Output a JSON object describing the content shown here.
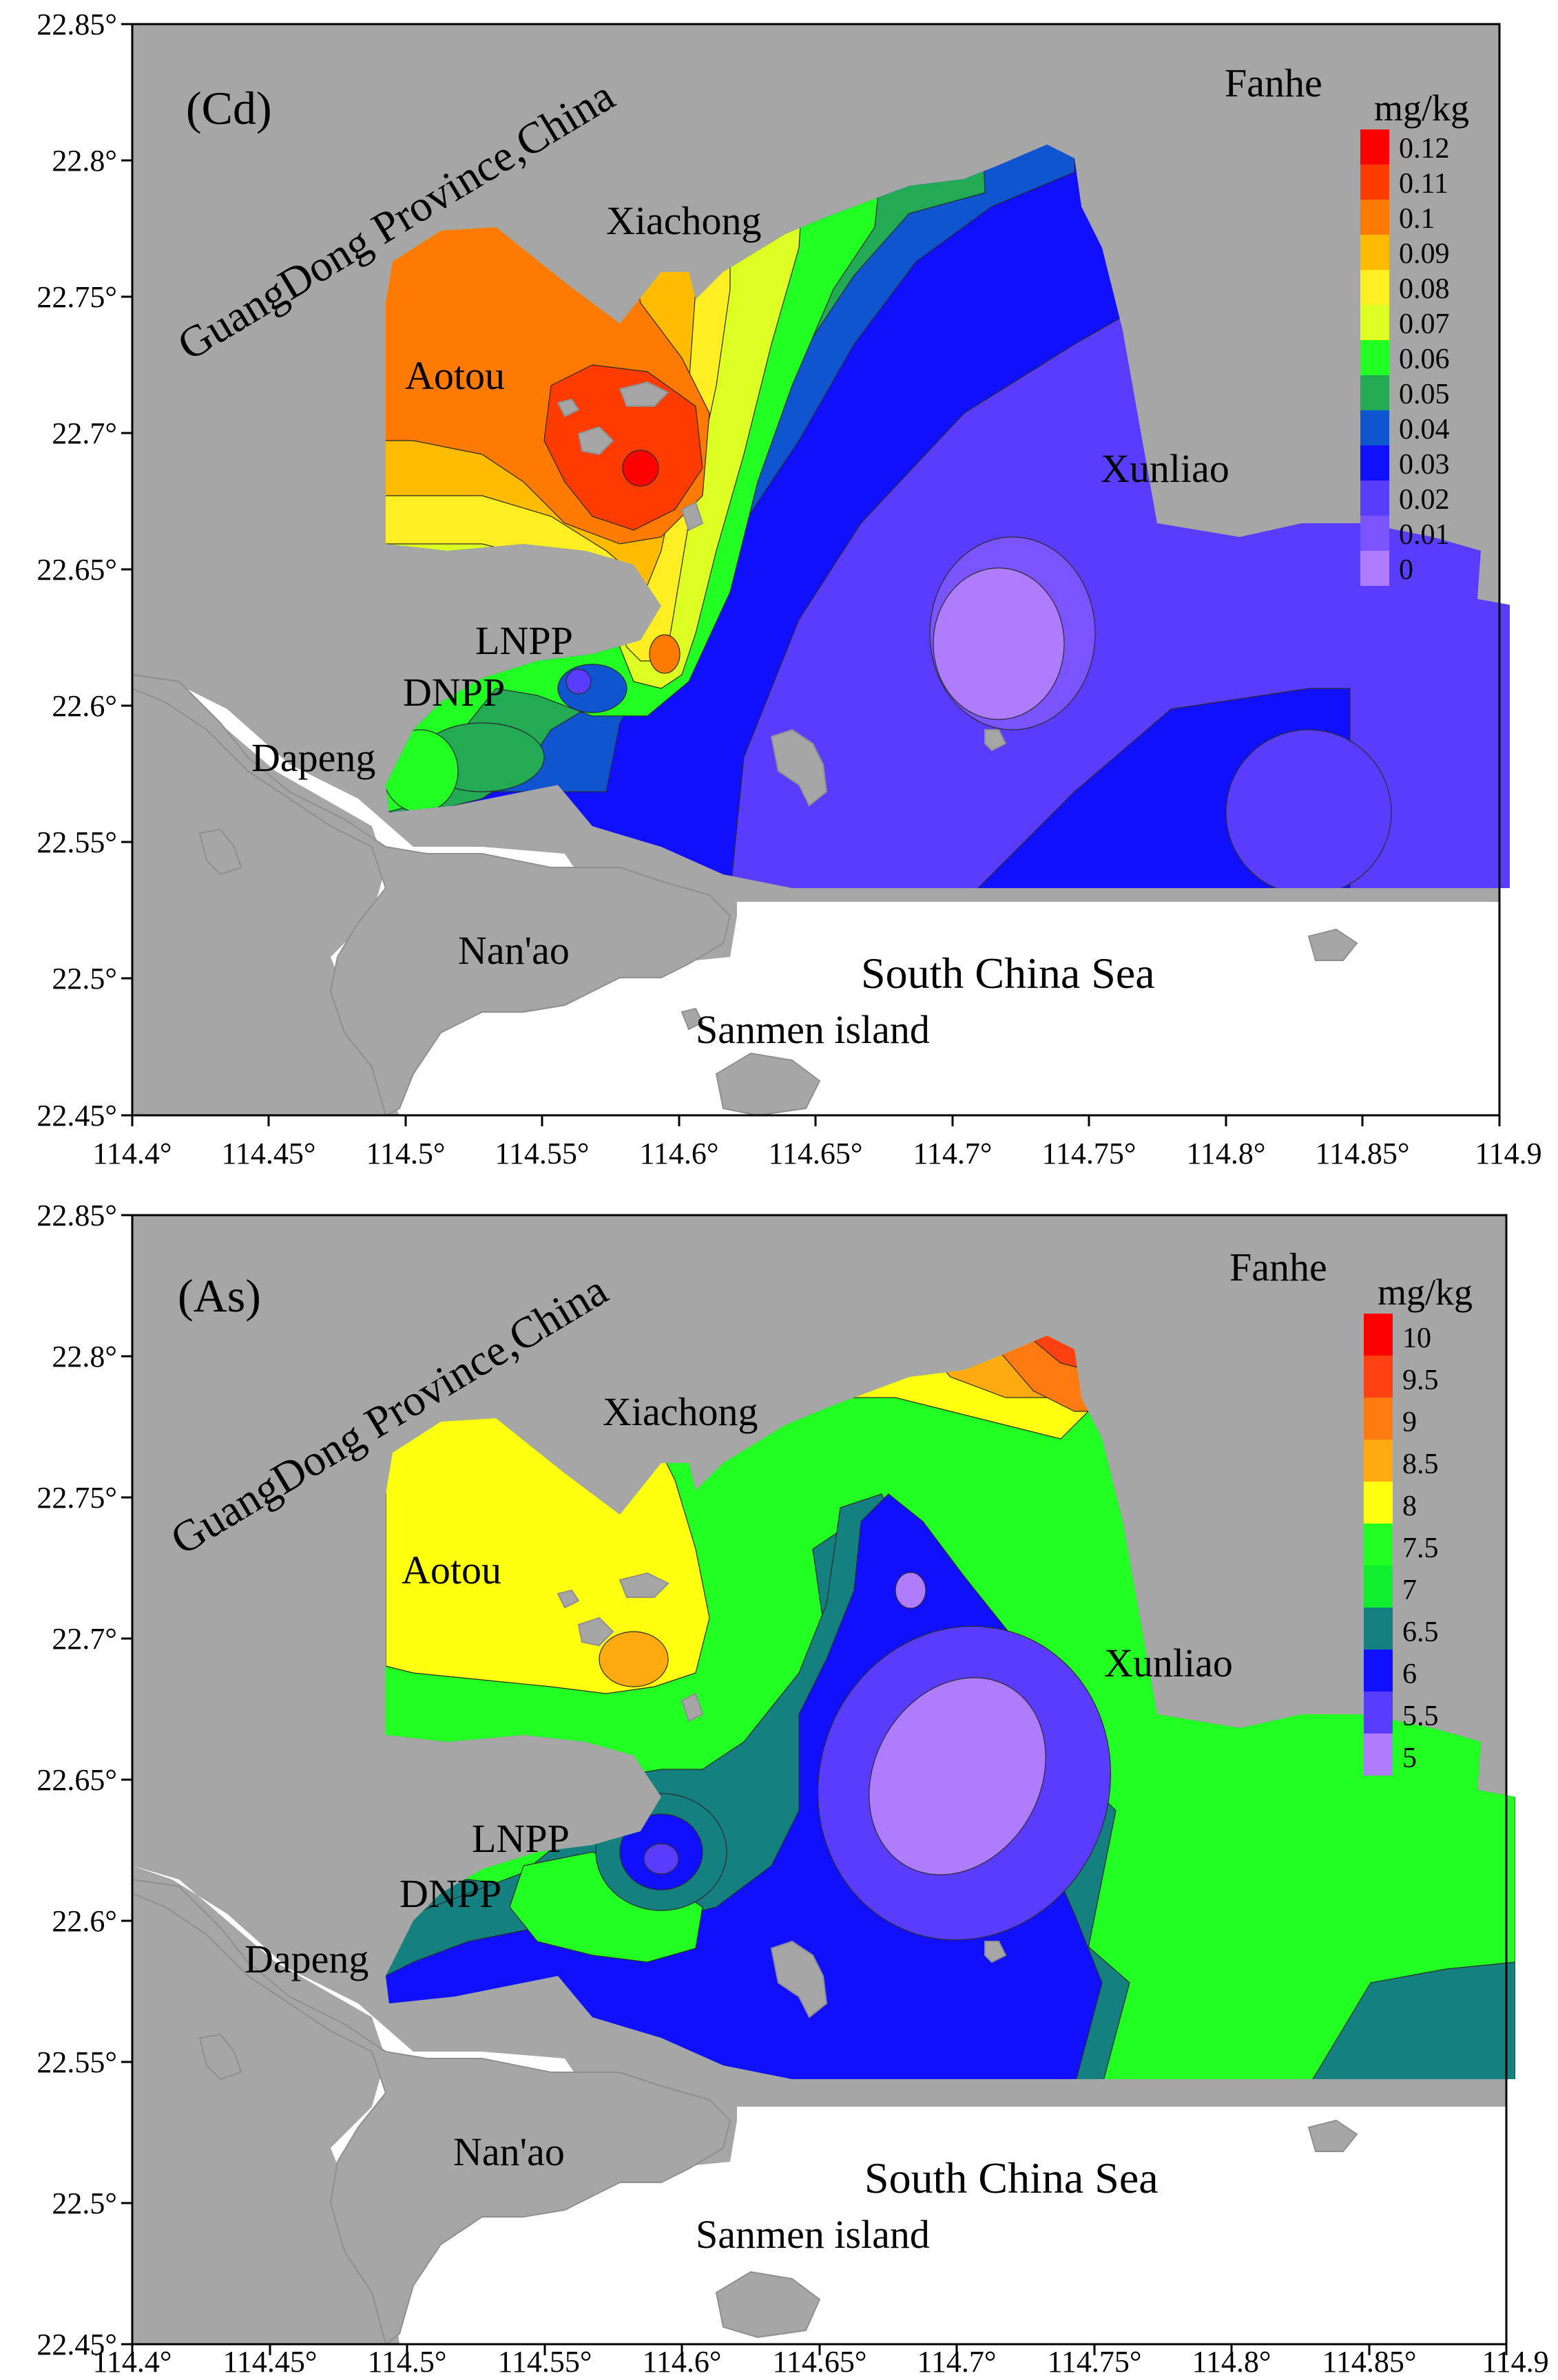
{
  "axes": {
    "x_ticks": [
      "114.4°",
      "114.45°",
      "114.5°",
      "114.55°",
      "114.6°",
      "114.65°",
      "114.7°",
      "114.75°",
      "114.8°",
      "114.85°",
      "114.9"
    ],
    "y_ticks": [
      "22.85°",
      "22.8°",
      "22.75°",
      "22.7°",
      "22.65°",
      "22.6°",
      "22.55°",
      "22.5°",
      "22.45°"
    ]
  },
  "land_color": "#a6a6a6",
  "sea_color": "#ffffff",
  "places": {
    "province": "GuangDong Province,China",
    "fanhe": "Fanhe",
    "xiachong": "Xiachong",
    "aotou": "Aotou",
    "xunliao": "Xunliao",
    "lnpp": "LNPP",
    "dnpp": "DNPP",
    "dapeng": "Dapeng",
    "nanao": "Nan'ao",
    "sea": "South China Sea",
    "sanmen": "Sanmen island"
  },
  "panels": [
    {
      "label": "(Cd)",
      "unit": "mg/kg",
      "legend": [
        {
          "value": "0.12",
          "color": "#ff0000"
        },
        {
          "value": "0.11",
          "color": "#ff3b00"
        },
        {
          "value": "0.1",
          "color": "#ff7a00"
        },
        {
          "value": "0.09",
          "color": "#ffbb00"
        },
        {
          "value": "0.08",
          "color": "#ffee22"
        },
        {
          "value": "0.07",
          "color": "#ddff22"
        },
        {
          "value": "0.06",
          "color": "#22ff22"
        },
        {
          "value": "0.05",
          "color": "#22aa55"
        },
        {
          "value": "0.04",
          "color": "#0f55d0"
        },
        {
          "value": "0.03",
          "color": "#1010ff"
        },
        {
          "value": "0.02",
          "color": "#5a3cff"
        },
        {
          "value": "0.01",
          "color": "#7a55ff"
        },
        {
          "value": "0",
          "color": "#b07cff"
        }
      ]
    },
    {
      "label": "(As)",
      "unit": "mg/kg",
      "legend": [
        {
          "value": "10",
          "color": "#ff0000"
        },
        {
          "value": "9.5",
          "color": "#ff4010"
        },
        {
          "value": "9",
          "color": "#ff7a10"
        },
        {
          "value": "8.5",
          "color": "#ffaa10"
        },
        {
          "value": "8",
          "color": "#ffff10"
        },
        {
          "value": "7.5",
          "color": "#22ff22"
        },
        {
          "value": "7",
          "color": "#10ee30"
        },
        {
          "value": "6.5",
          "color": "#158080"
        },
        {
          "value": "6",
          "color": "#1010ff"
        },
        {
          "value": "5.5",
          "color": "#5a3cff"
        },
        {
          "value": "5",
          "color": "#b07cff"
        }
      ]
    }
  ]
}
